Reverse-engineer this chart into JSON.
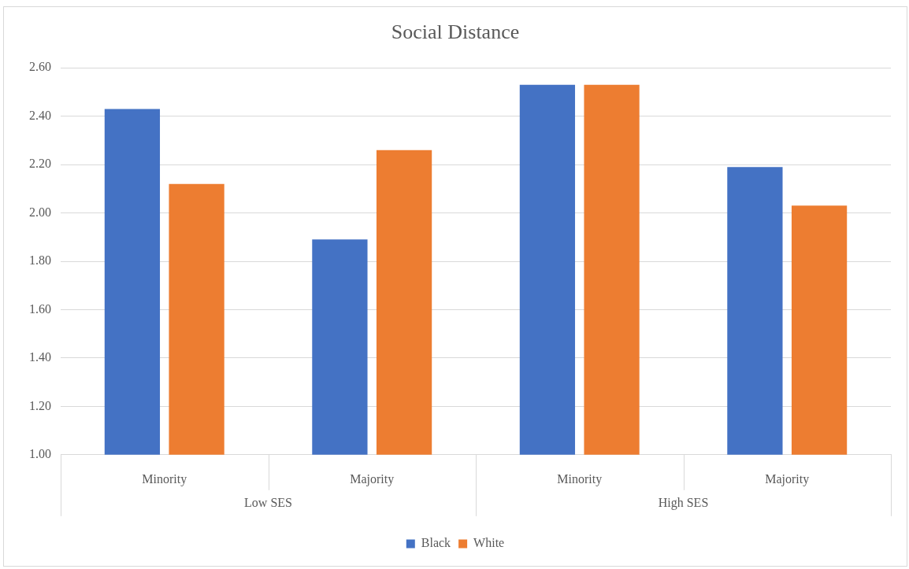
{
  "chart_data": {
    "type": "bar",
    "title": "Social Distance",
    "categories": [
      "Minority",
      "Majority",
      "Minority",
      "Majority"
    ],
    "series": [
      {
        "name": "Black",
        "color": "#4472c4",
        "values": [
          2.43,
          1.89,
          2.53,
          2.19
        ]
      },
      {
        "name": "White",
        "color": "#ed7d31",
        "values": [
          2.12,
          2.26,
          2.53,
          2.03
        ]
      }
    ],
    "ylim": [
      1.0,
      2.6
    ],
    "yticks": [
      {
        "value": 1.0,
        "label": "1.00"
      },
      {
        "value": 1.2,
        "label": "1.20"
      },
      {
        "value": 1.4,
        "label": "1.40"
      },
      {
        "value": 1.6,
        "label": "1.60"
      },
      {
        "value": 1.8,
        "label": "1.80"
      },
      {
        "value": 2.0,
        "label": "2.00"
      },
      {
        "value": 2.2,
        "label": "2.20"
      },
      {
        "value": 2.4,
        "label": "2.40"
      },
      {
        "value": 2.6,
        "label": "2.60"
      }
    ],
    "annotations": [
      "Low SES",
      "High SES"
    ],
    "grid": "y",
    "legend": "bottom"
  }
}
